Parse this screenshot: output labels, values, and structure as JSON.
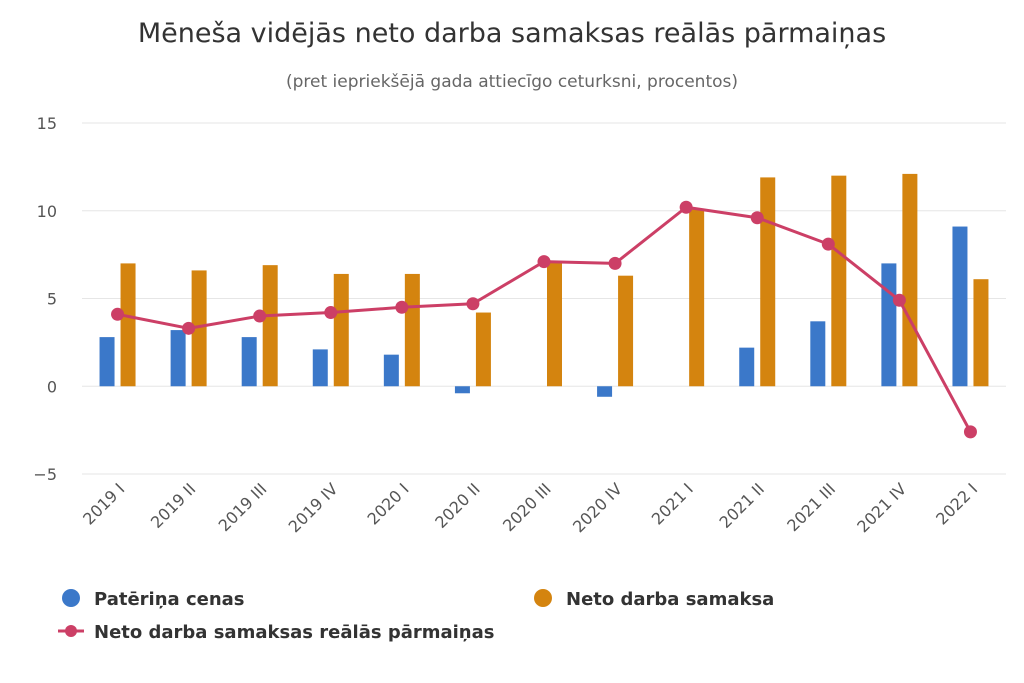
{
  "chart_data": {
    "type": "bar",
    "title": "Mēneša vidējās neto darba samaksas reālās pārmaiņas",
    "subtitle": "(pret iepriekšējā gada attiecīgo ceturksni, procentos)",
    "categories": [
      "2019 I",
      "2019 II",
      "2019 III",
      "2019 IV",
      "2020 I",
      "2020 II",
      "2020 III",
      "2020 IV",
      "2021 I",
      "2021 II",
      "2021 III",
      "2021 IV",
      "2022 I"
    ],
    "ylim": [
      -5,
      15
    ],
    "yticks": [
      "15",
      "10",
      "5",
      "0",
      "−5"
    ],
    "ytick_values": [
      15,
      10,
      5,
      0,
      -5
    ],
    "grid": true,
    "legend_position": "bottom",
    "series": [
      {
        "name": "Patēriņa cenas",
        "type": "bar",
        "color": "#3b78c9",
        "values": [
          2.8,
          3.2,
          2.8,
          2.1,
          1.8,
          -0.4,
          0.0,
          -0.6,
          0.0,
          2.2,
          3.7,
          7.0,
          9.1
        ]
      },
      {
        "name": "Neto darba samaksa",
        "type": "bar",
        "color": "#d4840f",
        "values": [
          7.0,
          6.6,
          6.9,
          6.4,
          6.4,
          4.2,
          7.1,
          6.3,
          10.1,
          11.9,
          12.0,
          12.1,
          6.1
        ]
      },
      {
        "name": "Neto darba samaksas reālās pārmaiņas",
        "type": "line",
        "color": "#cc3f66",
        "values": [
          4.1,
          3.3,
          4.0,
          4.2,
          4.5,
          4.7,
          7.1,
          7.0,
          10.2,
          9.6,
          8.1,
          4.9,
          -2.6
        ]
      }
    ]
  }
}
